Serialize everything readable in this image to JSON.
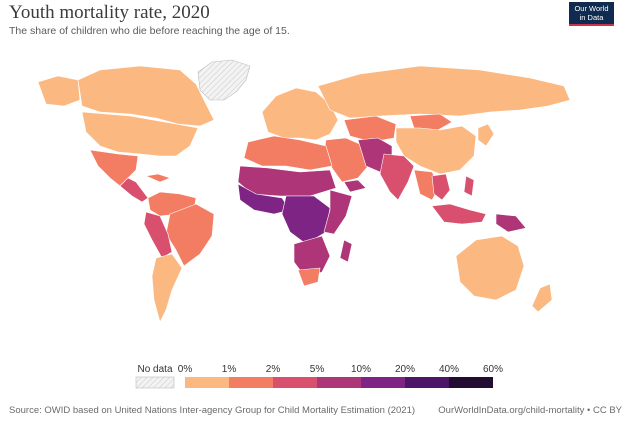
{
  "header": {
    "title": "Youth mortality rate, 2020",
    "subtitle": "The share of children who die before reaching the age of 15.",
    "logo_line1": "Our World",
    "logo_line2": "in Data"
  },
  "legend": {
    "no_data_label": "No data",
    "bins": [
      {
        "label": "0%",
        "color": "#fbb880"
      },
      {
        "label": "1%",
        "color": "#f37d63"
      },
      {
        "label": "2%",
        "color": "#d9506f"
      },
      {
        "label": "5%",
        "color": "#ae3577"
      },
      {
        "label": "10%",
        "color": "#7d2484"
      },
      {
        "label": "20%",
        "color": "#4d1568"
      },
      {
        "label": "40%",
        "color": "#230c31"
      }
    ],
    "last_label": "60%"
  },
  "colors": {
    "no_data": "#e5e5e5",
    "ocean": "#ffffff",
    "border": "#ffffff"
  },
  "footer": {
    "source": "Source: OWID based on United Nations Inter-agency Group for Child Mortality Estimation (2021)",
    "attribution": "OurWorldInData.org/child-mortality • CC BY"
  }
}
